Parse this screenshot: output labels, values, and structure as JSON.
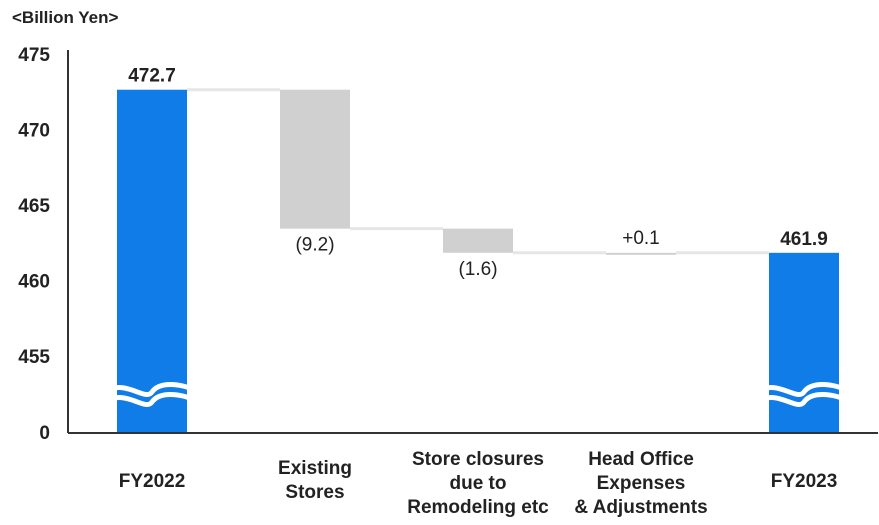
{
  "chart_data": {
    "type": "bar",
    "subtype": "waterfall",
    "unit_label": "<Billion Yen>",
    "categories": [
      [
        "FY2022"
      ],
      [
        "Existing",
        "Stores"
      ],
      [
        "Store closures",
        "due to",
        "Remodeling etc"
      ],
      [
        "Head Office",
        "Expenses",
        "& Adjustments"
      ],
      [
        "FY2023"
      ]
    ],
    "bars": [
      {
        "kind": "total",
        "start": 0,
        "end": 472.7,
        "label": "472.7"
      },
      {
        "kind": "delta",
        "start": 472.7,
        "end": 463.5,
        "label": "(9.2)"
      },
      {
        "kind": "delta",
        "start": 463.5,
        "end": 461.9,
        "label": "(1.6)"
      },
      {
        "kind": "delta",
        "start": 461.8,
        "end": 461.9,
        "label": "+0.1"
      },
      {
        "kind": "total",
        "start": 0,
        "end": 461.9,
        "label": "461.9"
      }
    ],
    "yticks": [
      "0",
      "455",
      "460",
      "465",
      "470",
      "475"
    ],
    "ylim": [
      455,
      475
    ],
    "axis_break": true,
    "colors": {
      "total": "#0f7ce8",
      "delta": "#d0d0d0",
      "connector": "#e6e6e6",
      "axis": "#333333"
    },
    "grid": false,
    "legend": "none"
  }
}
